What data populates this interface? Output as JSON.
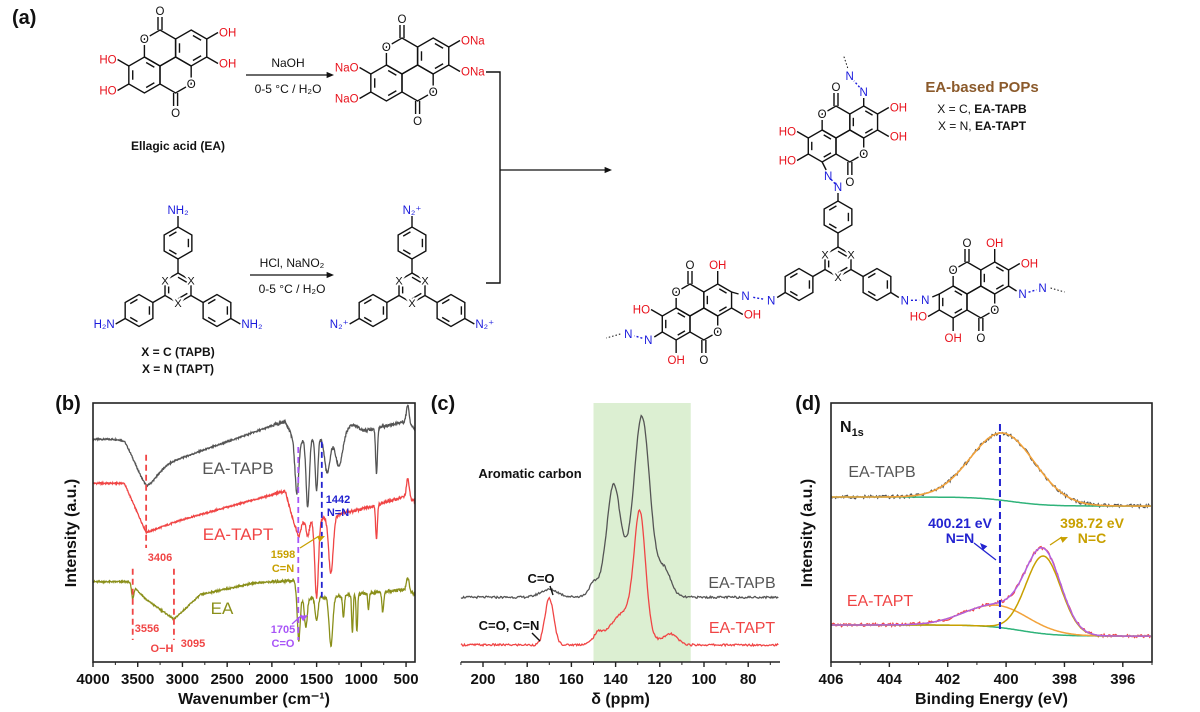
{
  "colors": {
    "black": "#111111",
    "tapb": "#555555",
    "tapt": "#f04545",
    "ea": "#8a8f1a",
    "oxygen_red": "#e8121c",
    "nitrogen_blue": "#1a1adc",
    "brown": "#8b5a2b",
    "purple_dash": "#a855f7",
    "blue_dash": "#2323d0",
    "gold": "#c8a000",
    "fit_orange": "#f2a23a",
    "fit_green": "#2fb37a",
    "fit_purple": "#b25fe0",
    "band": "#dcefd2"
  },
  "panel_a": {
    "label": "(a)",
    "ea_name": "Ellagic acid (EA)",
    "reaction1": {
      "reagent": "NaOH",
      "conditions": "0-5 °C / H₂O"
    },
    "reaction2": {
      "reagent": "HCl, NaNO₂",
      "conditions": "0-5 °C / H₂O"
    },
    "amine_legend": [
      "X = C (TAPB)",
      "X = N (TAPT)"
    ],
    "pop_title": "EA-based POPs",
    "pop_legend": [
      {
        "prefix": "X = C, ",
        "name": "EA-TAPB"
      },
      {
        "prefix": "X = N, ",
        "name": "EA-TAPT"
      }
    ],
    "atoms": {
      "O": "O",
      "OH": "OH",
      "HO": "HO",
      "ONa": "ONa",
      "NaO": "NaO",
      "NH2": "NH₂",
      "H2N": "H₂N",
      "N2plus": "N₂⁺",
      "X": "X",
      "N": "N"
    }
  },
  "chart_data": [
    {
      "panel": "(b)",
      "type": "line",
      "title": "",
      "xlabel": "Wavenumber (cm⁻¹)",
      "ylabel": "Intensity (a.u.)",
      "xlim": [
        4000,
        400
      ],
      "ylim": [
        0,
        10
      ],
      "xticks": [
        "4000",
        "3500",
        "3000",
        "2500",
        "2000",
        "1500",
        "1000",
        "500"
      ],
      "xtick_values": [
        4000,
        3500,
        3000,
        2500,
        2000,
        1500,
        1000,
        500
      ],
      "series": [
        {
          "name": "EA-TAPB",
          "color_key": "tapb",
          "baseline": [
            [
              4000,
              8.6
            ],
            [
              3650,
              8.6
            ],
            [
              3400,
              7.4
            ],
            [
              1850,
              9.3
            ],
            [
              1750,
              8.5
            ],
            [
              1000,
              8.9
            ],
            [
              500,
              9.3
            ],
            [
              400,
              9.0
            ]
          ],
          "peaks": [
            [
              3406,
              -0.6,
              120
            ],
            [
              1720,
              -2.0,
              20
            ],
            [
              1600,
              -2.6,
              18
            ],
            [
              1500,
              -2.0,
              15
            ],
            [
              1380,
              -1.4,
              30
            ],
            [
              1250,
              -1.2,
              40
            ],
            [
              830,
              -1.8,
              10
            ],
            [
              1100,
              0.3,
              60
            ],
            [
              480,
              0.7,
              15
            ]
          ]
        },
        {
          "name": "EA-TAPT",
          "color_key": "tapt",
          "baseline": [
            [
              4000,
              6.9
            ],
            [
              3650,
              6.9
            ],
            [
              3406,
              5.0
            ],
            [
              3000,
              5.5
            ],
            [
              1850,
              6.6
            ],
            [
              1750,
              5.3
            ],
            [
              1000,
              5.9
            ],
            [
              500,
              6.4
            ],
            [
              400,
              6.2
            ]
          ],
          "peaks": [
            [
              1700,
              -0.5,
              20
            ],
            [
              1598,
              -0.6,
              15
            ],
            [
              1500,
              -3.0,
              20
            ],
            [
              1340,
              -2.2,
              25
            ],
            [
              830,
              -1.3,
              10
            ],
            [
              480,
              0.7,
              15
            ]
          ]
        },
        {
          "name": "EA",
          "color_key": "ea",
          "baseline": [
            [
              4000,
              3.1
            ],
            [
              3600,
              3.1
            ],
            [
              3400,
              2.4
            ],
            [
              3095,
              1.65
            ],
            [
              2800,
              2.6
            ],
            [
              2200,
              3.05
            ],
            [
              1750,
              3.15
            ],
            [
              1700,
              2.4
            ],
            [
              500,
              2.8
            ],
            [
              400,
              2.6
            ]
          ],
          "peaks": [
            [
              3556,
              -0.5,
              12
            ],
            [
              1700,
              -1.6,
              15
            ],
            [
              1620,
              -1.1,
              15
            ],
            [
              1500,
              -0.9,
              15
            ],
            [
              1340,
              -1.9,
              20
            ],
            [
              1200,
              -0.8,
              10
            ],
            [
              1100,
              -1.5,
              8
            ],
            [
              1050,
              -1.5,
              8
            ],
            [
              920,
              -0.6,
              8
            ],
            [
              760,
              -0.8,
              10
            ],
            [
              480,
              0.5,
              15
            ]
          ]
        }
      ],
      "reference_lines": [
        {
          "x": 3406,
          "color_key": "tapt",
          "y_range": [
            4.4,
            8.0
          ]
        },
        {
          "x": 3556,
          "color_key": "tapt",
          "y_range": [
            0.85,
            3.6
          ]
        },
        {
          "x": 3095,
          "color_key": "tapt",
          "y_range": [
            0.85,
            3.6
          ]
        },
        {
          "x": 1705,
          "color_key": "purple_dash",
          "y_range": [
            0.85,
            8.3
          ]
        },
        {
          "x": 1442,
          "color_key": "blue_dash",
          "y_range": [
            2.5,
            8.5
          ]
        }
      ],
      "annotations": [
        {
          "text": "3406",
          "color_key": "tapt"
        },
        {
          "text": "3556",
          "color_key": "tapt"
        },
        {
          "text": "O−H",
          "color_key": "tapt"
        },
        {
          "text": "3095",
          "color_key": "tapt"
        },
        {
          "text": "1598",
          "color_key": "gold"
        },
        {
          "text": "C=N",
          "color_key": "gold"
        },
        {
          "text": "1705",
          "color_key": "purple_dash"
        },
        {
          "text": "C=O",
          "color_key": "purple_dash"
        },
        {
          "text": "1442",
          "color_key": "blue_dash"
        },
        {
          "text": "N=N",
          "color_key": "blue_dash"
        }
      ]
    },
    {
      "panel": "(c)",
      "type": "line",
      "xlabel": "δ (ppm)",
      "xlim": [
        210,
        66
      ],
      "ylim": [
        0,
        10
      ],
      "xticks": [
        "200",
        "180",
        "160",
        "140",
        "120",
        "100",
        "80"
      ],
      "xtick_values": [
        200,
        180,
        160,
        140,
        120,
        100,
        80
      ],
      "highlight_band": [
        150,
        106
      ],
      "series": [
        {
          "name": "EA-TAPB",
          "color_key": "tapb",
          "baseline": [
            [
              210,
              2.5
            ],
            [
              66,
              2.5
            ]
          ],
          "peaks": [
            [
              128,
              6.3,
              3.5
            ],
            [
              141,
              3.6,
              3
            ],
            [
              135,
              1.0,
              8
            ],
            [
              118,
              1.0,
              3
            ],
            [
              150,
              0.4,
              2
            ],
            [
              170,
              0.3,
              4
            ]
          ]
        },
        {
          "name": "EA-TAPT",
          "color_key": "tapt",
          "baseline": [
            [
              210,
              0.66
            ],
            [
              66,
              0.66
            ]
          ],
          "peaks": [
            [
              129,
              4.3,
              2.5
            ],
            [
              135,
              1.3,
              7
            ],
            [
              170,
              1.8,
              2
            ],
            [
              115,
              0.4,
              3
            ],
            [
              148,
              0.3,
              2
            ]
          ]
        }
      ],
      "annotations": [
        {
          "text": "Aromatic carbon",
          "color_key": "black"
        },
        {
          "text": "C=O",
          "color_key": "black"
        },
        {
          "text": "C=O, C=N",
          "color_key": "black"
        }
      ]
    },
    {
      "panel": "(d)",
      "type": "line",
      "title_main": "N",
      "title_sub": "1s",
      "xlabel": "Binding Energy (eV)",
      "ylabel": "Intensity (a.u.)",
      "xlim": [
        406,
        395
      ],
      "ylim": [
        0,
        10
      ],
      "xticks": [
        "406",
        "404",
        "402",
        "400",
        "398",
        "396"
      ],
      "xtick_values": [
        406,
        404,
        402,
        400,
        398,
        396
      ],
      "series": [
        {
          "name": "EA-TAPB",
          "color_key": "tapb",
          "background": {
            "left": 6.37,
            "right": 6.02,
            "center": 399.8
          },
          "components": [
            {
              "label": "N=N",
              "center": 400.1,
              "amp": 2.6,
              "sigma": 1.1
            }
          ]
        },
        {
          "name": "EA-TAPT",
          "color_key": "tapt",
          "background": {
            "left": 1.43,
            "right": 1.0,
            "center": 399.5
          },
          "components": [
            {
              "label": "N=N",
              "center": 400.3,
              "amp": 0.85,
              "sigma": 1.1
            },
            {
              "label": "N=C",
              "center": 398.72,
              "amp": 3.0,
              "sigma": 0.6
            }
          ]
        }
      ],
      "reference_line": {
        "x": 400.21
      },
      "annotations": [
        {
          "text": "400.21 eV",
          "color_key": "blue_dash"
        },
        {
          "text": "N=N",
          "color_key": "blue_dash"
        },
        {
          "text": "398.72 eV",
          "color_key": "gold"
        },
        {
          "text": "N=C",
          "color_key": "gold"
        }
      ]
    }
  ]
}
